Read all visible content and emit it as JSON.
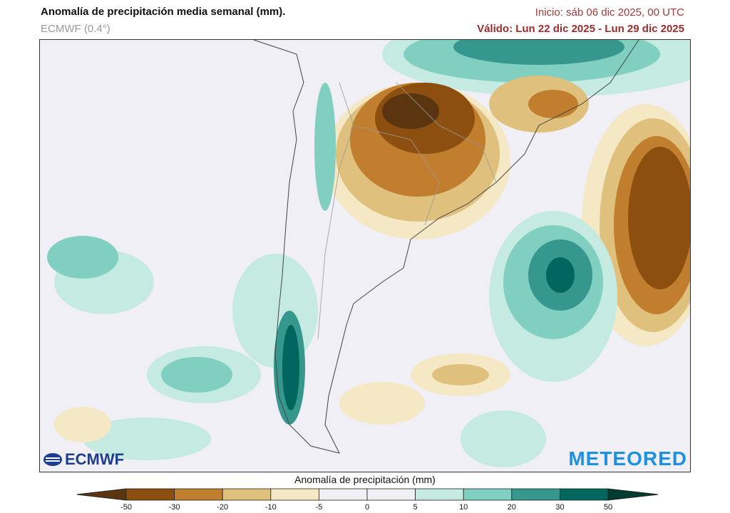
{
  "header": {
    "title": "Anomalía de precipitación media semanal (mm).",
    "model": "ECMWF (0.4°)",
    "init": "Inicio:  sáb 06 dic 2025, 00 UTC",
    "valid": "Válido: Lun 22 dic 2025 - Lun 29 dic 2025"
  },
  "logos": {
    "left": "ECMWF",
    "right": "METEORED"
  },
  "colorbar": {
    "title": "Anomalía de precipitación (mm)",
    "ticks": [
      "-50",
      "-30",
      "-20",
      "-10",
      "-5",
      "0",
      "5",
      "10",
      "20",
      "30",
      "50"
    ],
    "colors": [
      "#5a3510",
      "#8c4f0f",
      "#c07e2e",
      "#dfc07c",
      "#f5e8c4",
      "#efeff5",
      "#efeff5",
      "#c4eae2",
      "#80cfc0",
      "#35978d",
      "#01665e",
      "#003c30"
    ]
  },
  "map": {
    "region": "South America (southern cone)",
    "background_color": "#efeff5"
  }
}
